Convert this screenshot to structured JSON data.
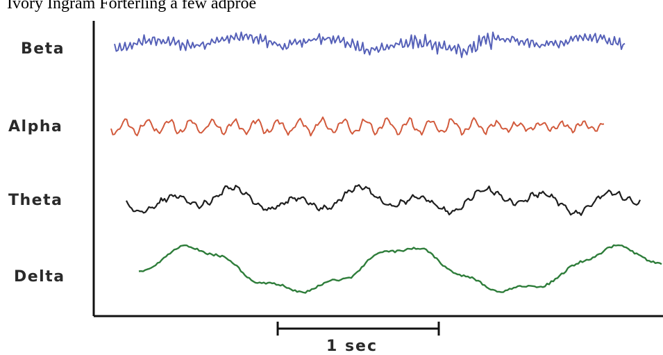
{
  "caption": "Ivory Ingram Forterling a few adproe",
  "waves": [
    {
      "label": "Beta",
      "color": "#5560b8"
    },
    {
      "label": "Alpha",
      "color": "#d25a3c"
    },
    {
      "label": "Theta",
      "color": "#1e1e1e"
    },
    {
      "label": "Delta",
      "color": "#2e7d3a"
    }
  ],
  "scale_bar": {
    "label": "1 sec"
  }
}
